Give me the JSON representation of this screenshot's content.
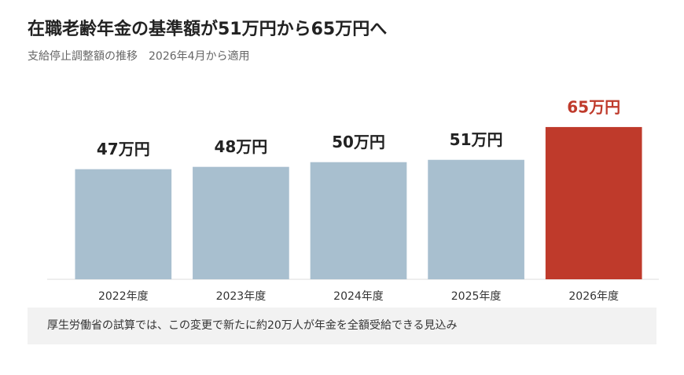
{
  "chart_data": {
    "type": "bar",
    "title": "在職老齢年金の基準額が51万円から65万円へ",
    "subtitle": "支給停止調整額の推移　2026年4月から適用",
    "categories": [
      "2022年度",
      "2023年度",
      "2024年度",
      "2025年度",
      "2026年度"
    ],
    "values": [
      47,
      48,
      50,
      51,
      65
    ],
    "value_labels": [
      "47万円",
      "48万円",
      "50万円",
      "51万円",
      "65万円"
    ],
    "colors": [
      "#a8bfcf",
      "#a8bfcf",
      "#a8bfcf",
      "#a8bfcf",
      "#bf3a2b"
    ],
    "label_colors": [
      "#222222",
      "#222222",
      "#222222",
      "#222222",
      "#bf3a2b"
    ],
    "ylim": [
      0,
      70
    ],
    "note": "厚生労働省の試算では、この変更で新たに約20万人が年金を全額受給できる見込み"
  }
}
